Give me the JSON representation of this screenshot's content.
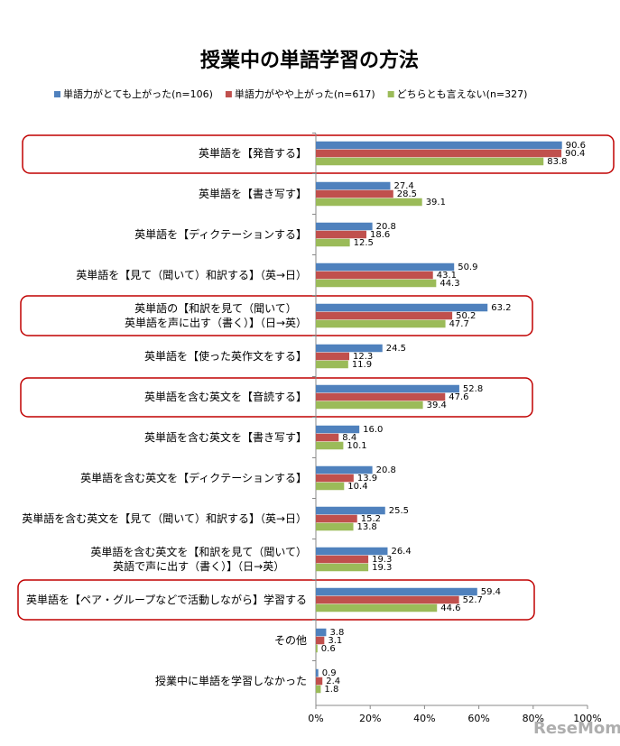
{
  "chart_data": {
    "type": "hbar",
    "title": "授業中の単語学習の方法",
    "categories": [
      "英単語を【発音する】",
      "英単語を【書き写す】",
      "英単語を【ディクテーションする】",
      "英単語を【見て（聞いて）和訳する】（英→日）",
      "英単語の【和訳を見て（聞いて）\n英単語を声に出す（書く）】（日→英）",
      "英単語を【使った英作文をする】",
      "英単語を含む英文を【音読する】",
      "英単語を含む英文を【書き写す】",
      "英単語を含む英文を【ディクテーションする】",
      "英単語を含む英文を【見て（聞いて）和訳する】（英→日）",
      "英単語を含む英文を【和訳を見て（聞いて）\n英語で声に出す（書く）】（日→英）",
      "英単語を【ペア・グループなどで活動しながら】学習する",
      "その他",
      "授業中に単語を学習しなかった"
    ],
    "series": [
      {
        "name": "単語力がとても上がった(n=106)",
        "color": "#4f81bd",
        "values": [
          90.6,
          27.4,
          20.8,
          50.9,
          63.2,
          24.5,
          52.8,
          16.0,
          20.8,
          25.5,
          26.4,
          59.4,
          3.8,
          0.9
        ],
        "value_labels": [
          "90.6",
          "27.4",
          "20.8",
          "50.9",
          "63.2",
          "24.5",
          "52.8",
          "16.0",
          "20.8",
          "25.5",
          "26.4",
          "59.4",
          "3.8",
          "0.9"
        ]
      },
      {
        "name": "単語力がやや上がった(n=617)",
        "color": "#c0504d",
        "values": [
          90.4,
          28.5,
          18.6,
          43.1,
          50.2,
          12.3,
          47.6,
          8.4,
          13.9,
          15.2,
          19.3,
          52.7,
          3.1,
          2.4
        ],
        "value_labels": [
          "90.4",
          "28.5",
          "18.6",
          "43.1",
          "50.2",
          "12.3",
          "47.6",
          "8.4",
          "13.9",
          "15.2",
          "19.3",
          "52.7",
          "3.1",
          "2.4"
        ]
      },
      {
        "name": "どちらとも言えない(n=327)",
        "color": "#9bbb59",
        "values": [
          83.8,
          39.1,
          12.5,
          44.3,
          47.7,
          11.9,
          39.4,
          10.1,
          10.4,
          13.8,
          19.3,
          44.6,
          0.6,
          1.8
        ],
        "value_labels": [
          "83.8",
          "39.1",
          "12.5",
          "44.3",
          "47.7",
          "11.9",
          "39.4",
          "10.1",
          "10.4",
          "13.8",
          "19.3",
          "44.6",
          "0.6",
          "1.8"
        ]
      }
    ],
    "xlim": [
      0,
      100
    ],
    "xticks": [
      {
        "value": 0,
        "label": "0%"
      },
      {
        "value": 20,
        "label": "20%"
      },
      {
        "value": 40,
        "label": "40%"
      },
      {
        "value": 60,
        "label": "60%"
      },
      {
        "value": 80,
        "label": "80%"
      },
      {
        "value": 100,
        "label": "100%"
      }
    ],
    "grid": false,
    "legend": "top",
    "watermark": "ReseMom"
  }
}
